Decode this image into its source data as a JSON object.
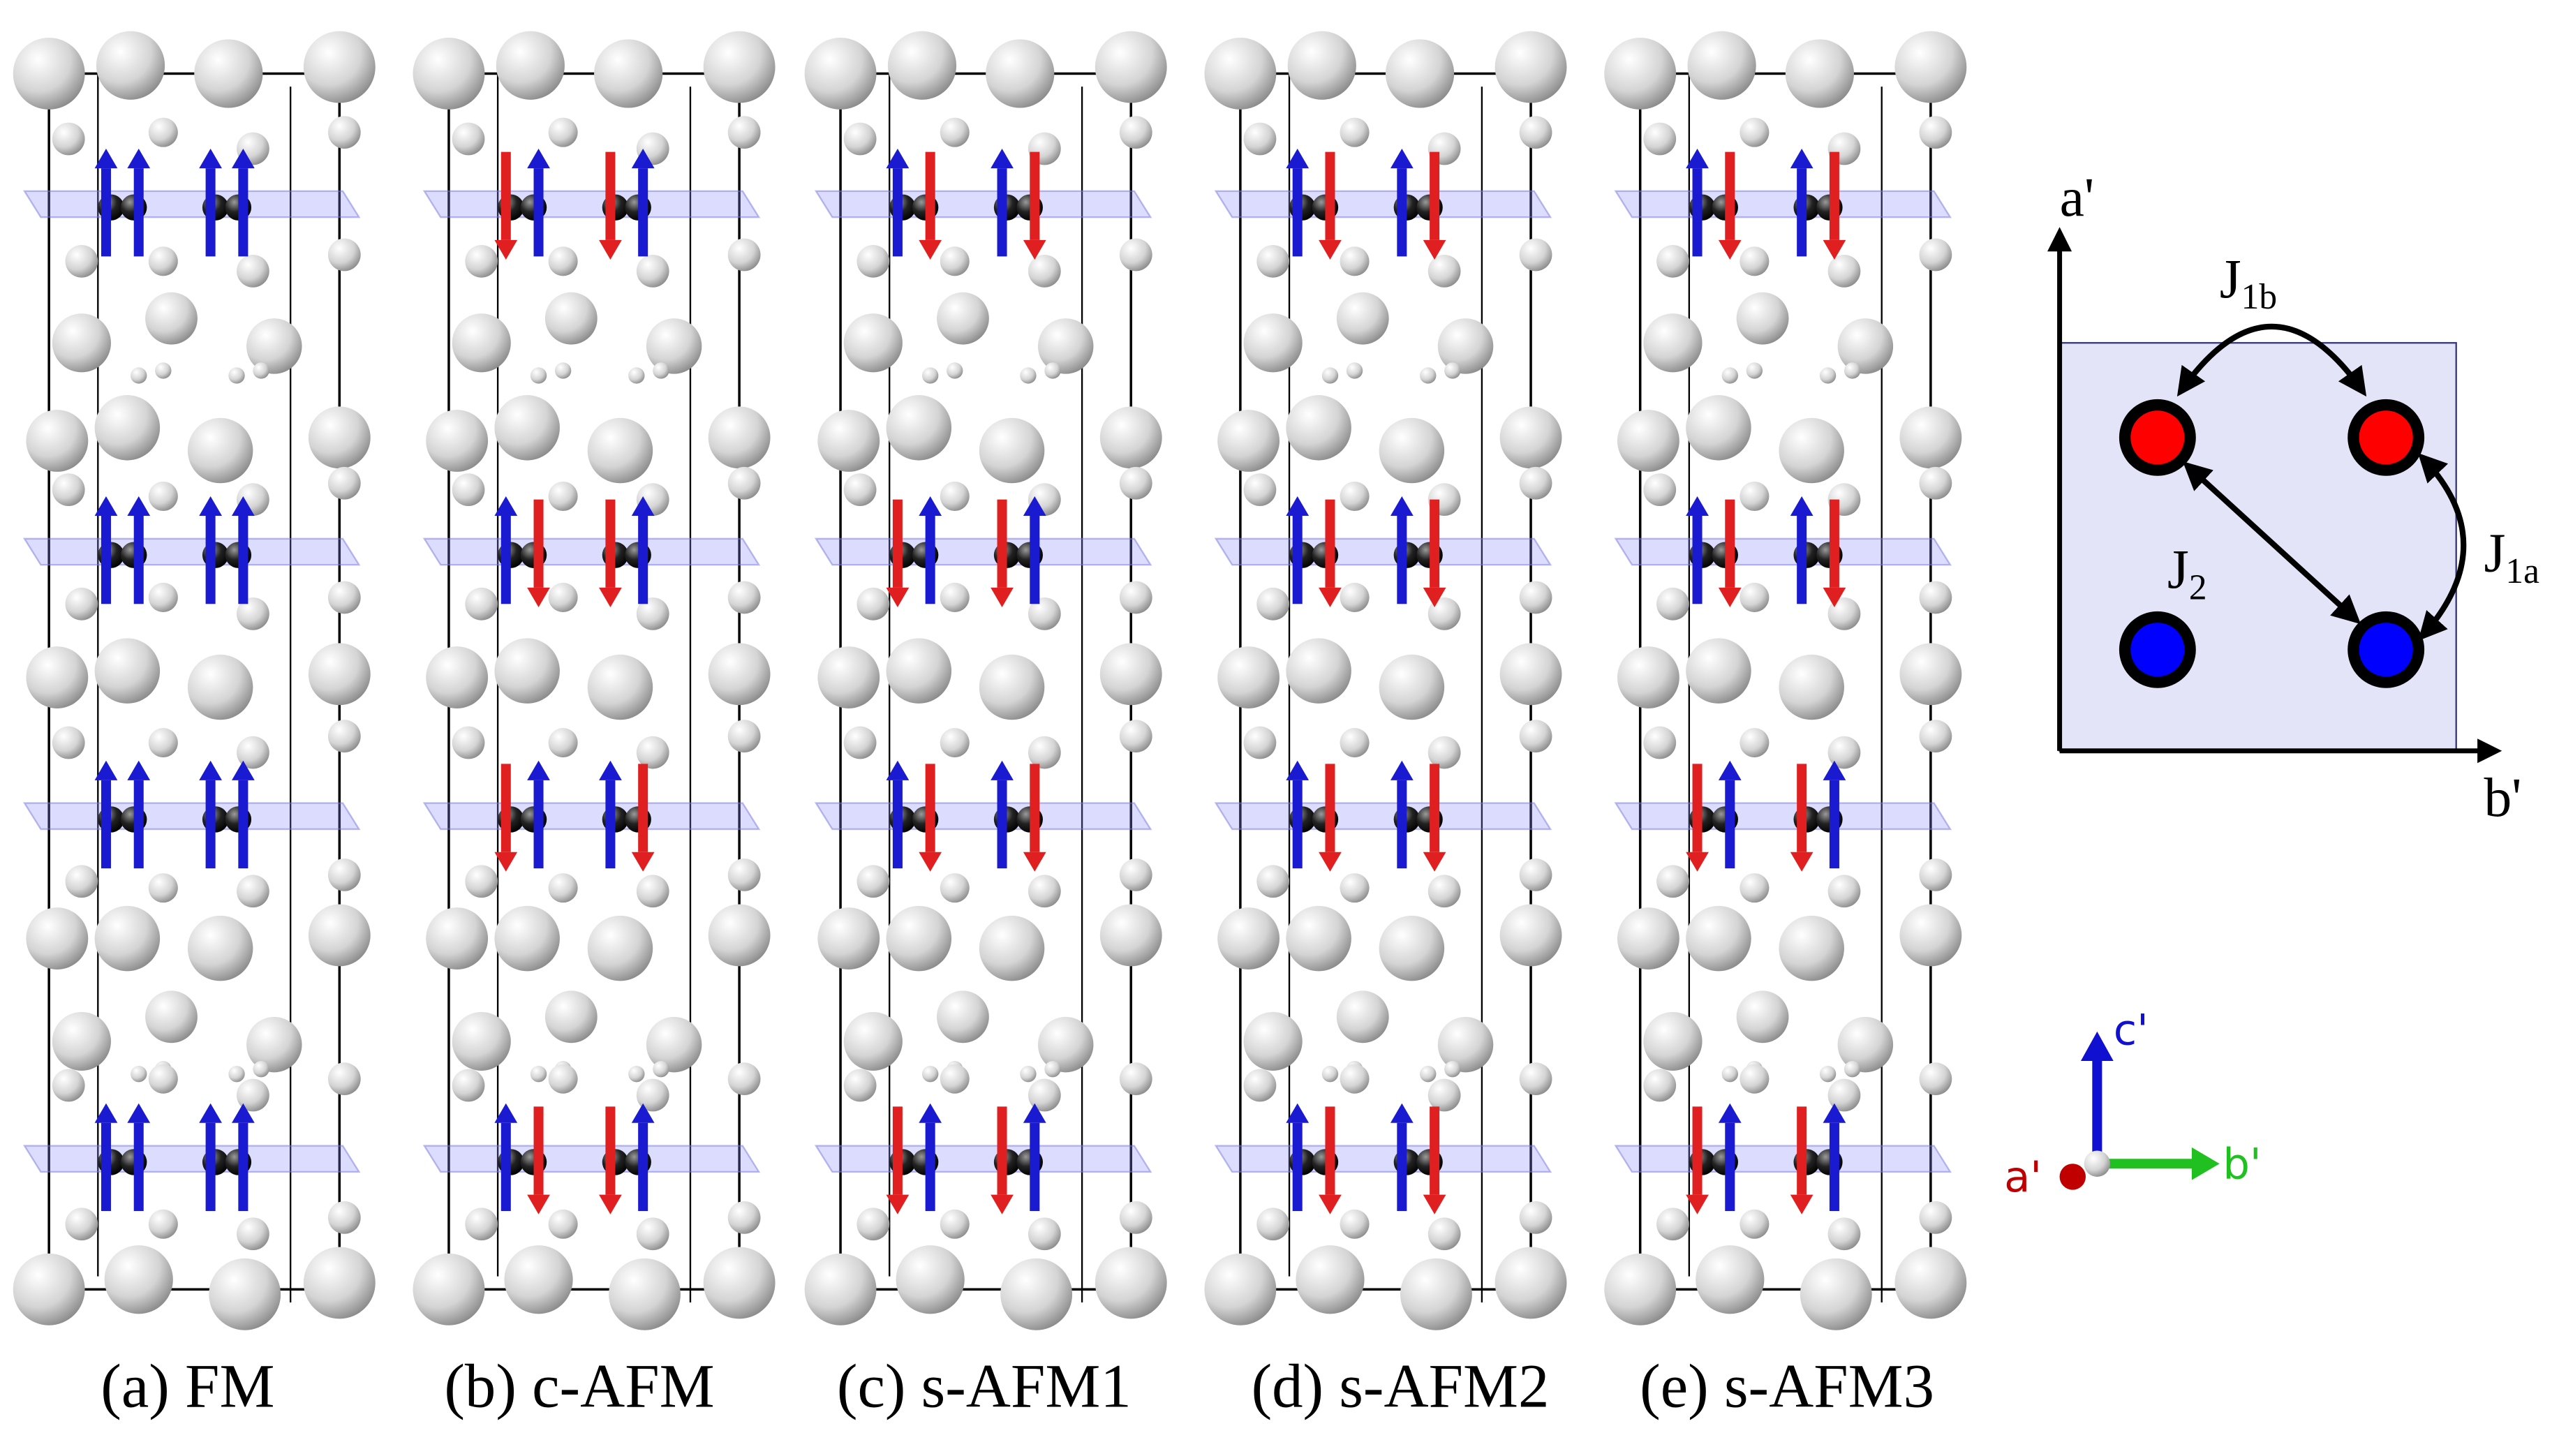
{
  "panels": [
    {
      "label": "(a) FM"
    },
    {
      "label": "(b) c-AFM"
    },
    {
      "label": "(c) s-AFM1"
    },
    {
      "label": "(d) s-AFM2"
    },
    {
      "label": "(e) s-AFM3"
    }
  ],
  "inset": {
    "x_axis": "b'",
    "y_axis": "a'",
    "couplings": [
      {
        "symbol": "J",
        "subscript": "1b"
      },
      {
        "symbol": "J",
        "subscript": "2"
      },
      {
        "symbol": "J",
        "subscript": "1a"
      }
    ]
  },
  "compass": {
    "a": "a'",
    "b": "b'",
    "c": "c'"
  }
}
